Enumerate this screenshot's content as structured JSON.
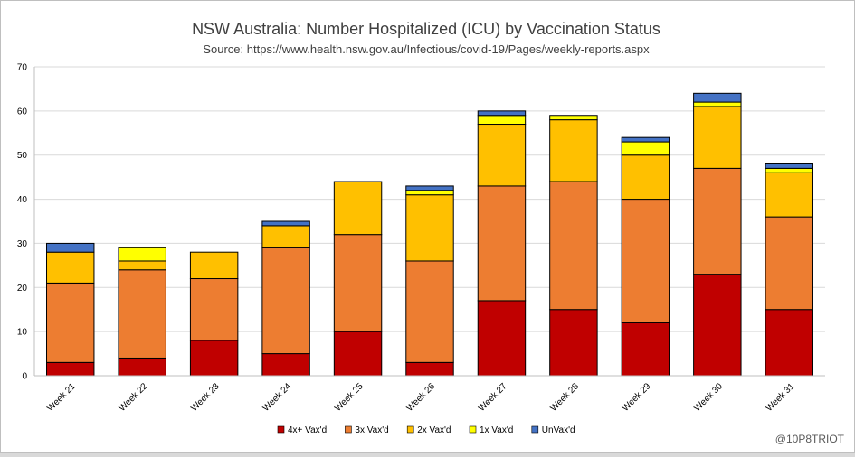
{
  "chart_data": {
    "type": "bar",
    "stacked": true,
    "title": "NSW Australia: Number Hospitalized (ICU) by Vaccination Status",
    "subtitle": "Source: https://www.health.nsw.gov.au/Infectious/covid-19/Pages/weekly-reports.aspx",
    "categories": [
      "Week 21",
      "Week 22",
      "Week 23",
      "Week 24",
      "Week 25",
      "Week 26",
      "Week 27",
      "Week 28",
      "Week 29",
      "Week 30",
      "Week 31"
    ],
    "series": [
      {
        "name": "4x+ Vax'd",
        "color": "#c00000",
        "values": [
          3,
          4,
          8,
          5,
          10,
          3,
          17,
          15,
          12,
          23,
          15
        ]
      },
      {
        "name": "3x Vax'd",
        "color": "#ed7d31",
        "values": [
          18,
          20,
          14,
          24,
          22,
          23,
          26,
          29,
          28,
          24,
          21
        ]
      },
      {
        "name": "2x Vax'd",
        "color": "#ffc000",
        "values": [
          7,
          2,
          6,
          5,
          12,
          15,
          14,
          14,
          10,
          14,
          10
        ]
      },
      {
        "name": "1x Vax'd",
        "color": "#ffff00",
        "values": [
          0,
          3,
          0,
          0,
          0,
          1,
          2,
          1,
          3,
          1,
          1
        ]
      },
      {
        "name": "UnVax'd",
        "color": "#4472c4",
        "values": [
          2,
          0,
          0,
          1,
          0,
          1,
          1,
          0,
          1,
          2,
          1
        ]
      }
    ],
    "ylim": [
      0,
      70
    ],
    "yticks": [
      0,
      10,
      20,
      30,
      40,
      50,
      60,
      70
    ],
    "grid": true,
    "legend": "bottom",
    "xlabel": "",
    "ylabel": ""
  },
  "watermark": "@10P8TRIOT"
}
